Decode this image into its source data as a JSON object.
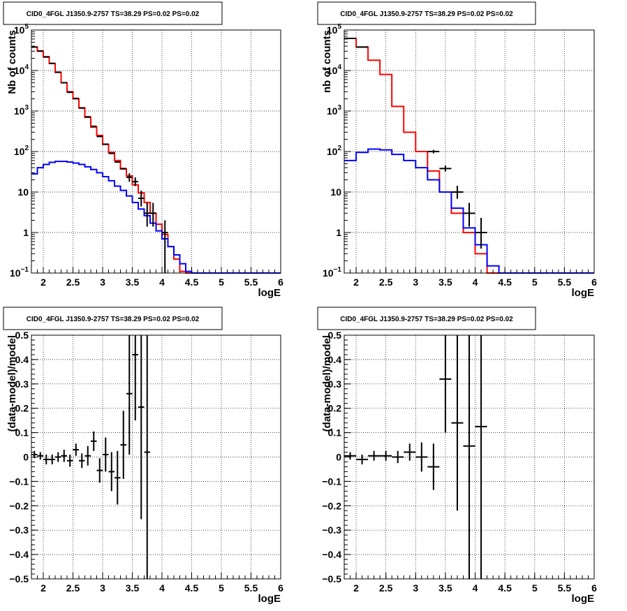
{
  "colors": {
    "data": "#000000",
    "model_total": "#ff0000",
    "model_source": "#0000ff"
  },
  "chart_data": [
    {
      "panel": "top-left",
      "type": "line",
      "title": "CID0_4FGL J1350.9-2757 TS=38.29 PS=0.02 PS=0.02",
      "xlabel": "logE",
      "ylabel": "Nb of counts",
      "xlim": [
        1.8,
        6
      ],
      "ylim": [
        0.1,
        100000
      ],
      "yscale": "log",
      "grid": true,
      "xticks": [
        "2",
        "2.5",
        "3",
        "3.5",
        "4",
        "4.5",
        "5",
        "5.5",
        "6"
      ],
      "yticks": [
        "10^-1",
        "1",
        "10",
        "10^2",
        "10^3",
        "10^4",
        "10^5"
      ],
      "bin_edges": [
        1.8,
        1.9,
        2.0,
        2.1,
        2.2,
        2.3,
        2.4,
        2.5,
        2.6,
        2.7,
        2.8,
        2.9,
        3.0,
        3.1,
        3.2,
        3.3,
        3.4,
        3.5,
        3.6,
        3.7,
        3.8,
        3.9,
        4.0,
        4.1,
        4.2,
        4.3,
        4.4,
        4.5,
        4.6,
        4.7,
        4.8,
        4.9,
        5.0,
        5.1,
        5.2,
        5.3,
        5.4,
        5.5,
        5.6,
        5.7,
        5.8,
        5.9,
        6.0
      ],
      "series": [
        {
          "name": "",
          "style": "model_total",
          "values": [
            38000,
            30000,
            22000,
            15000,
            9000,
            5000,
            3000,
            2000,
            1200,
            700,
            400,
            250,
            150,
            95,
            60,
            37,
            25,
            15,
            9.5,
            5.5,
            3.0,
            1.6,
            0.9,
            0.45,
            0.22,
            0.11,
            0.1,
            0.1,
            0.1,
            0.1,
            0.1,
            0.1,
            0.1,
            0.1,
            0.1,
            0.1,
            0.1,
            0.1,
            0.1,
            0.1,
            0.1,
            0.1
          ]
        },
        {
          "name": "",
          "style": "model_source",
          "values": [
            28,
            40,
            48,
            54,
            57,
            57,
            55,
            52,
            48,
            42,
            36,
            30,
            24,
            19,
            14,
            11,
            8.0,
            5.5,
            3.8,
            2.6,
            1.7,
            1.1,
            0.7,
            0.45,
            0.28,
            0.17,
            0.11,
            0.1,
            0.1,
            0.1,
            0.1,
            0.1,
            0.1,
            0.1,
            0.1,
            0.1,
            0.1,
            0.1,
            0.1,
            0.1,
            0.1,
            0.1
          ]
        }
      ],
      "points": [
        {
          "x": 1.85,
          "y": 38000,
          "elo": 0,
          "ehi": 0
        },
        {
          "x": 1.95,
          "y": 30500,
          "elo": 0,
          "ehi": 0
        },
        {
          "x": 2.05,
          "y": 21500,
          "elo": 0,
          "ehi": 0
        },
        {
          "x": 2.15,
          "y": 15000,
          "elo": 0,
          "ehi": 0
        },
        {
          "x": 2.25,
          "y": 9100,
          "elo": 0,
          "ehi": 0
        },
        {
          "x": 2.35,
          "y": 5000,
          "elo": 0,
          "ehi": 0
        },
        {
          "x": 2.45,
          "y": 2900,
          "elo": 0,
          "ehi": 0
        },
        {
          "x": 2.55,
          "y": 2050,
          "elo": 0,
          "ehi": 0
        },
        {
          "x": 2.65,
          "y": 1180,
          "elo": 0,
          "ehi": 0
        },
        {
          "x": 2.75,
          "y": 720,
          "elo": 0,
          "ehi": 0
        },
        {
          "x": 2.85,
          "y": 420,
          "elo": 0,
          "ehi": 0
        },
        {
          "x": 2.95,
          "y": 235,
          "elo": 0,
          "ehi": 0
        },
        {
          "x": 3.05,
          "y": 152,
          "elo": 0,
          "ehi": 0
        },
        {
          "x": 3.15,
          "y": 90,
          "elo": 0,
          "ehi": 0
        },
        {
          "x": 3.25,
          "y": 55,
          "elo": 0,
          "ehi": 0
        },
        {
          "x": 3.35,
          "y": 38,
          "elo": 0,
          "ehi": 0
        },
        {
          "x": 3.45,
          "y": 23,
          "elo": 5,
          "ehi": 6
        },
        {
          "x": 3.55,
          "y": 18,
          "elo": 4,
          "ehi": 5
        },
        {
          "x": 3.65,
          "y": 7,
          "elo": 2.6,
          "ehi": 3.8
        },
        {
          "x": 3.75,
          "y": 3,
          "elo": 1.6,
          "ehi": 2.4
        },
        {
          "x": 3.85,
          "y": 3,
          "elo": 1.6,
          "ehi": 2.4
        },
        {
          "x": 4.05,
          "y": 1,
          "elo": 0.9,
          "ehi": 1.0
        }
      ]
    },
    {
      "panel": "top-right",
      "type": "line",
      "title": "CID0_4FGL J1350.9-2757 TS=38.29 PS=0.02 PS=0.02",
      "xlabel": "logE",
      "ylabel": "nb of counts",
      "xlim": [
        1.8,
        6
      ],
      "ylim": [
        0.1,
        100000
      ],
      "yscale": "log",
      "grid": true,
      "xticks": [
        "2",
        "2.5",
        "3",
        "3.5",
        "4",
        "4.5",
        "5",
        "5.5",
        "6"
      ],
      "yticks": [
        "10^-1",
        "1",
        "10",
        "10^2",
        "10^3",
        "10^4",
        "10^5"
      ],
      "bin_edges": [
        1.8,
        2.0,
        2.2,
        2.4,
        2.6,
        2.8,
        3.0,
        3.2,
        3.4,
        3.6,
        3.8,
        4.0,
        4.2,
        4.4,
        4.6,
        4.8,
        5.0,
        5.2,
        5.4,
        5.6,
        5.8,
        6.0
      ],
      "series": [
        {
          "name": "",
          "style": "model_total",
          "values": [
            62000,
            38000,
            18000,
            8000,
            1300,
            300,
            100,
            33,
            10,
            3.0,
            1.0,
            0.3,
            0.1,
            0.1,
            0.1,
            0.1,
            0.1,
            0.1,
            0.1,
            0.1,
            0.1
          ]
        },
        {
          "name": "",
          "style": "model_source",
          "values": [
            60,
            95,
            115,
            110,
            85,
            60,
            40,
            20,
            10,
            4.0,
            1.3,
            0.5,
            0.15,
            0.1,
            0.1,
            0.1,
            0.1,
            0.1,
            0.1,
            0.1,
            0.1
          ]
        }
      ],
      "points": [
        {
          "x": 1.9,
          "y": 62000,
          "elo": 0,
          "ehi": 0
        },
        {
          "x": 2.1,
          "y": 38000,
          "elo": 0,
          "ehi": 0
        },
        {
          "x": 3.3,
          "y": 100,
          "elo": 10,
          "ehi": 10
        },
        {
          "x": 3.5,
          "y": 38,
          "elo": 6,
          "ehi": 7
        },
        {
          "x": 3.7,
          "y": 10,
          "elo": 3.2,
          "ehi": 4.3
        },
        {
          "x": 3.9,
          "y": 3,
          "elo": 1.6,
          "ehi": 2.4
        },
        {
          "x": 4.1,
          "y": 1,
          "elo": 0.6,
          "ehi": 1.3
        }
      ]
    },
    {
      "panel": "bottom-left",
      "type": "scatter",
      "title": "CID0_4FGL J1350.9-2757 TS=38.29 PS=0.02 PS=0.02",
      "xlabel": "logE",
      "ylabel": "(data-model)/model",
      "xlim": [
        1.8,
        6
      ],
      "ylim": [
        -0.5,
        0.5
      ],
      "grid": true,
      "xticks": [
        "2",
        "2.5",
        "3",
        "3.5",
        "4",
        "4.5",
        "5",
        "5.5",
        "6"
      ],
      "yticks": [
        "−0.5",
        "−0.4",
        "−0.3",
        "−0.2",
        "−0.1",
        "0",
        "0.1",
        "0.2",
        "0.3",
        "0.4",
        "0.5"
      ],
      "points": [
        {
          "x": 1.85,
          "y": 0.01,
          "err": 0.015
        },
        {
          "x": 1.95,
          "y": 0.005,
          "err": 0.015
        },
        {
          "x": 2.05,
          "y": -0.01,
          "err": 0.02
        },
        {
          "x": 2.15,
          "y": -0.01,
          "err": 0.02
        },
        {
          "x": 2.25,
          "y": 0.0,
          "err": 0.02
        },
        {
          "x": 2.35,
          "y": 0.005,
          "err": 0.025
        },
        {
          "x": 2.45,
          "y": -0.015,
          "err": 0.025
        },
        {
          "x": 2.55,
          "y": 0.03,
          "err": 0.025
        },
        {
          "x": 2.65,
          "y": -0.015,
          "err": 0.03
        },
        {
          "x": 2.75,
          "y": 0.005,
          "err": 0.04
        },
        {
          "x": 2.85,
          "y": 0.065,
          "err": 0.04
        },
        {
          "x": 2.95,
          "y": -0.055,
          "err": 0.05
        },
        {
          "x": 3.05,
          "y": 0.01,
          "err": 0.07
        },
        {
          "x": 3.15,
          "y": -0.06,
          "err": 0.08
        },
        {
          "x": 3.25,
          "y": -0.085,
          "err": 0.11
        },
        {
          "x": 3.35,
          "y": 0.05,
          "err": 0.14
        },
        {
          "x": 3.45,
          "y": 0.26,
          "err": 0.25
        },
        {
          "x": 3.55,
          "y": 0.42,
          "err": 0.27
        },
        {
          "x": 3.65,
          "y": 0.205,
          "err": 0.46
        },
        {
          "x": 3.75,
          "y": 0.02,
          "err": 0.6
        }
      ]
    },
    {
      "panel": "bottom-right",
      "type": "scatter",
      "title": "CID0_4FGL J1350.9-2757 TS=38.29 PS=0.02 PS=0.02",
      "xlabel": "logE",
      "ylabel": "(data-model)/model",
      "xlim": [
        1.8,
        6
      ],
      "ylim": [
        -0.5,
        0.5
      ],
      "grid": true,
      "xticks": [
        "2",
        "2.5",
        "3",
        "3.5",
        "4",
        "4.5",
        "5",
        "5.5",
        "6"
      ],
      "yticks": [
        "−0.5",
        "−0.4",
        "−0.3",
        "−0.2",
        "−0.1",
        "0",
        "0.1",
        "0.2",
        "0.3",
        "0.4",
        "0.5"
      ],
      "points": [
        {
          "x": 1.9,
          "y": 0.005,
          "err": 0.015
        },
        {
          "x": 2.1,
          "y": -0.01,
          "err": 0.02
        },
        {
          "x": 2.3,
          "y": 0.005,
          "err": 0.02
        },
        {
          "x": 2.5,
          "y": 0.005,
          "err": 0.02
        },
        {
          "x": 2.7,
          "y": 0.0,
          "err": 0.025
        },
        {
          "x": 2.9,
          "y": 0.02,
          "err": 0.035
        },
        {
          "x": 3.1,
          "y": 0.0,
          "err": 0.06
        },
        {
          "x": 3.3,
          "y": -0.04,
          "err": 0.095
        },
        {
          "x": 3.5,
          "y": 0.32,
          "err": 0.22
        },
        {
          "x": 3.7,
          "y": 0.14,
          "err": 0.36
        },
        {
          "x": 3.9,
          "y": 0.045,
          "err": 0.6
        },
        {
          "x": 4.1,
          "y": 0.125,
          "err": 0.8
        }
      ]
    }
  ]
}
